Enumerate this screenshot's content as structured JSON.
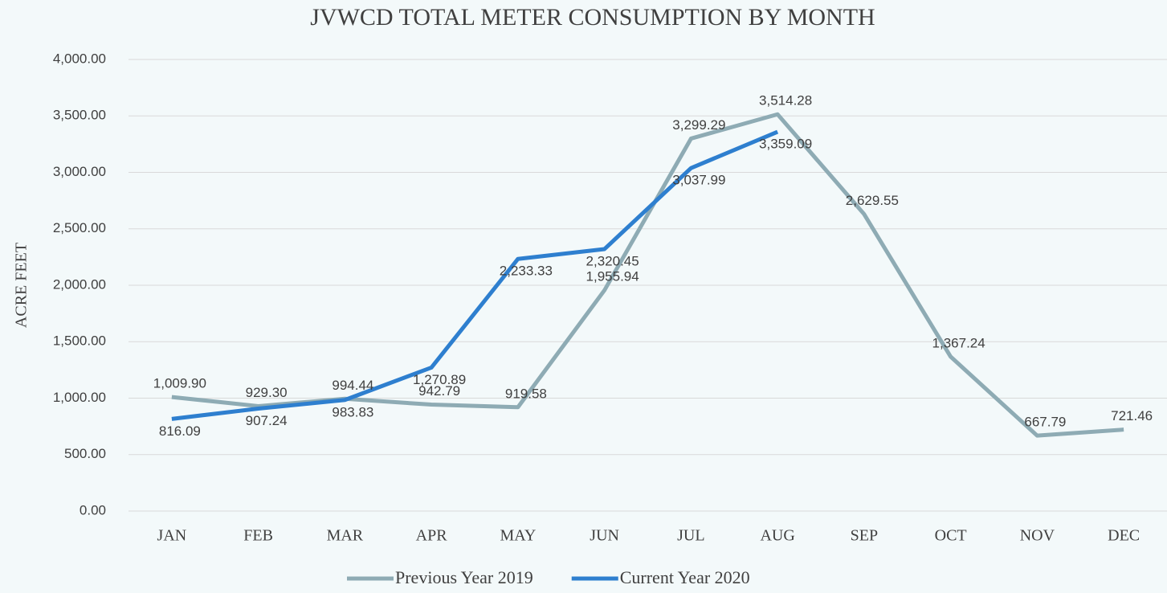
{
  "chart_data": {
    "type": "line",
    "title": "JVWCD TOTAL METER CONSUMPTION BY MONTH",
    "y_label": "ACRE FEET",
    "categories": [
      "JAN",
      "FEB",
      "MAR",
      "APR",
      "MAY",
      "JUN",
      "JUL",
      "AUG",
      "SEP",
      "OCT",
      "NOV",
      "DEC"
    ],
    "series": [
      {
        "name": "Previous Year 2019",
        "color": "#8eabb4",
        "values": [
          1009.9,
          929.3,
          994.44,
          942.79,
          919.58,
          1955.94,
          3299.29,
          3514.28,
          2629.55,
          1367.24,
          667.79,
          721.46
        ],
        "value_labels": [
          "1,009.90",
          "929.30",
          "994.44",
          "942.79",
          "919.58",
          "1,955.94",
          "3,299.29",
          "3,514.28",
          "2,629.55",
          "1,367.24",
          "667.79",
          "721.46"
        ]
      },
      {
        "name": "Current Year 2020",
        "color": "#2e7fcf",
        "values": [
          816.09,
          907.24,
          983.83,
          1270.89,
          2233.33,
          2320.45,
          3037.99,
          3359.09,
          null,
          null,
          null,
          null
        ],
        "value_labels": [
          "816.09",
          "907.24",
          "983.83",
          "1,270.89",
          "2,233.33",
          "2,320.45",
          "3,037.99",
          "3,359.09",
          null,
          null,
          null,
          null
        ]
      }
    ],
    "ylim": [
      0,
      4000
    ],
    "yticks": [
      {
        "value": 0,
        "label": "0.00"
      },
      {
        "value": 500,
        "label": "500.00"
      },
      {
        "value": 1000,
        "label": "1,000.00"
      },
      {
        "value": 1500,
        "label": "1,500.00"
      },
      {
        "value": 2000,
        "label": "2,000.00"
      },
      {
        "value": 2500,
        "label": "2,500.00"
      },
      {
        "value": 3000,
        "label": "3,000.00"
      },
      {
        "value": 3500,
        "label": "3,500.00"
      },
      {
        "value": 4000,
        "label": "4,000.00"
      }
    ],
    "grid": true,
    "legend": "bottom"
  }
}
